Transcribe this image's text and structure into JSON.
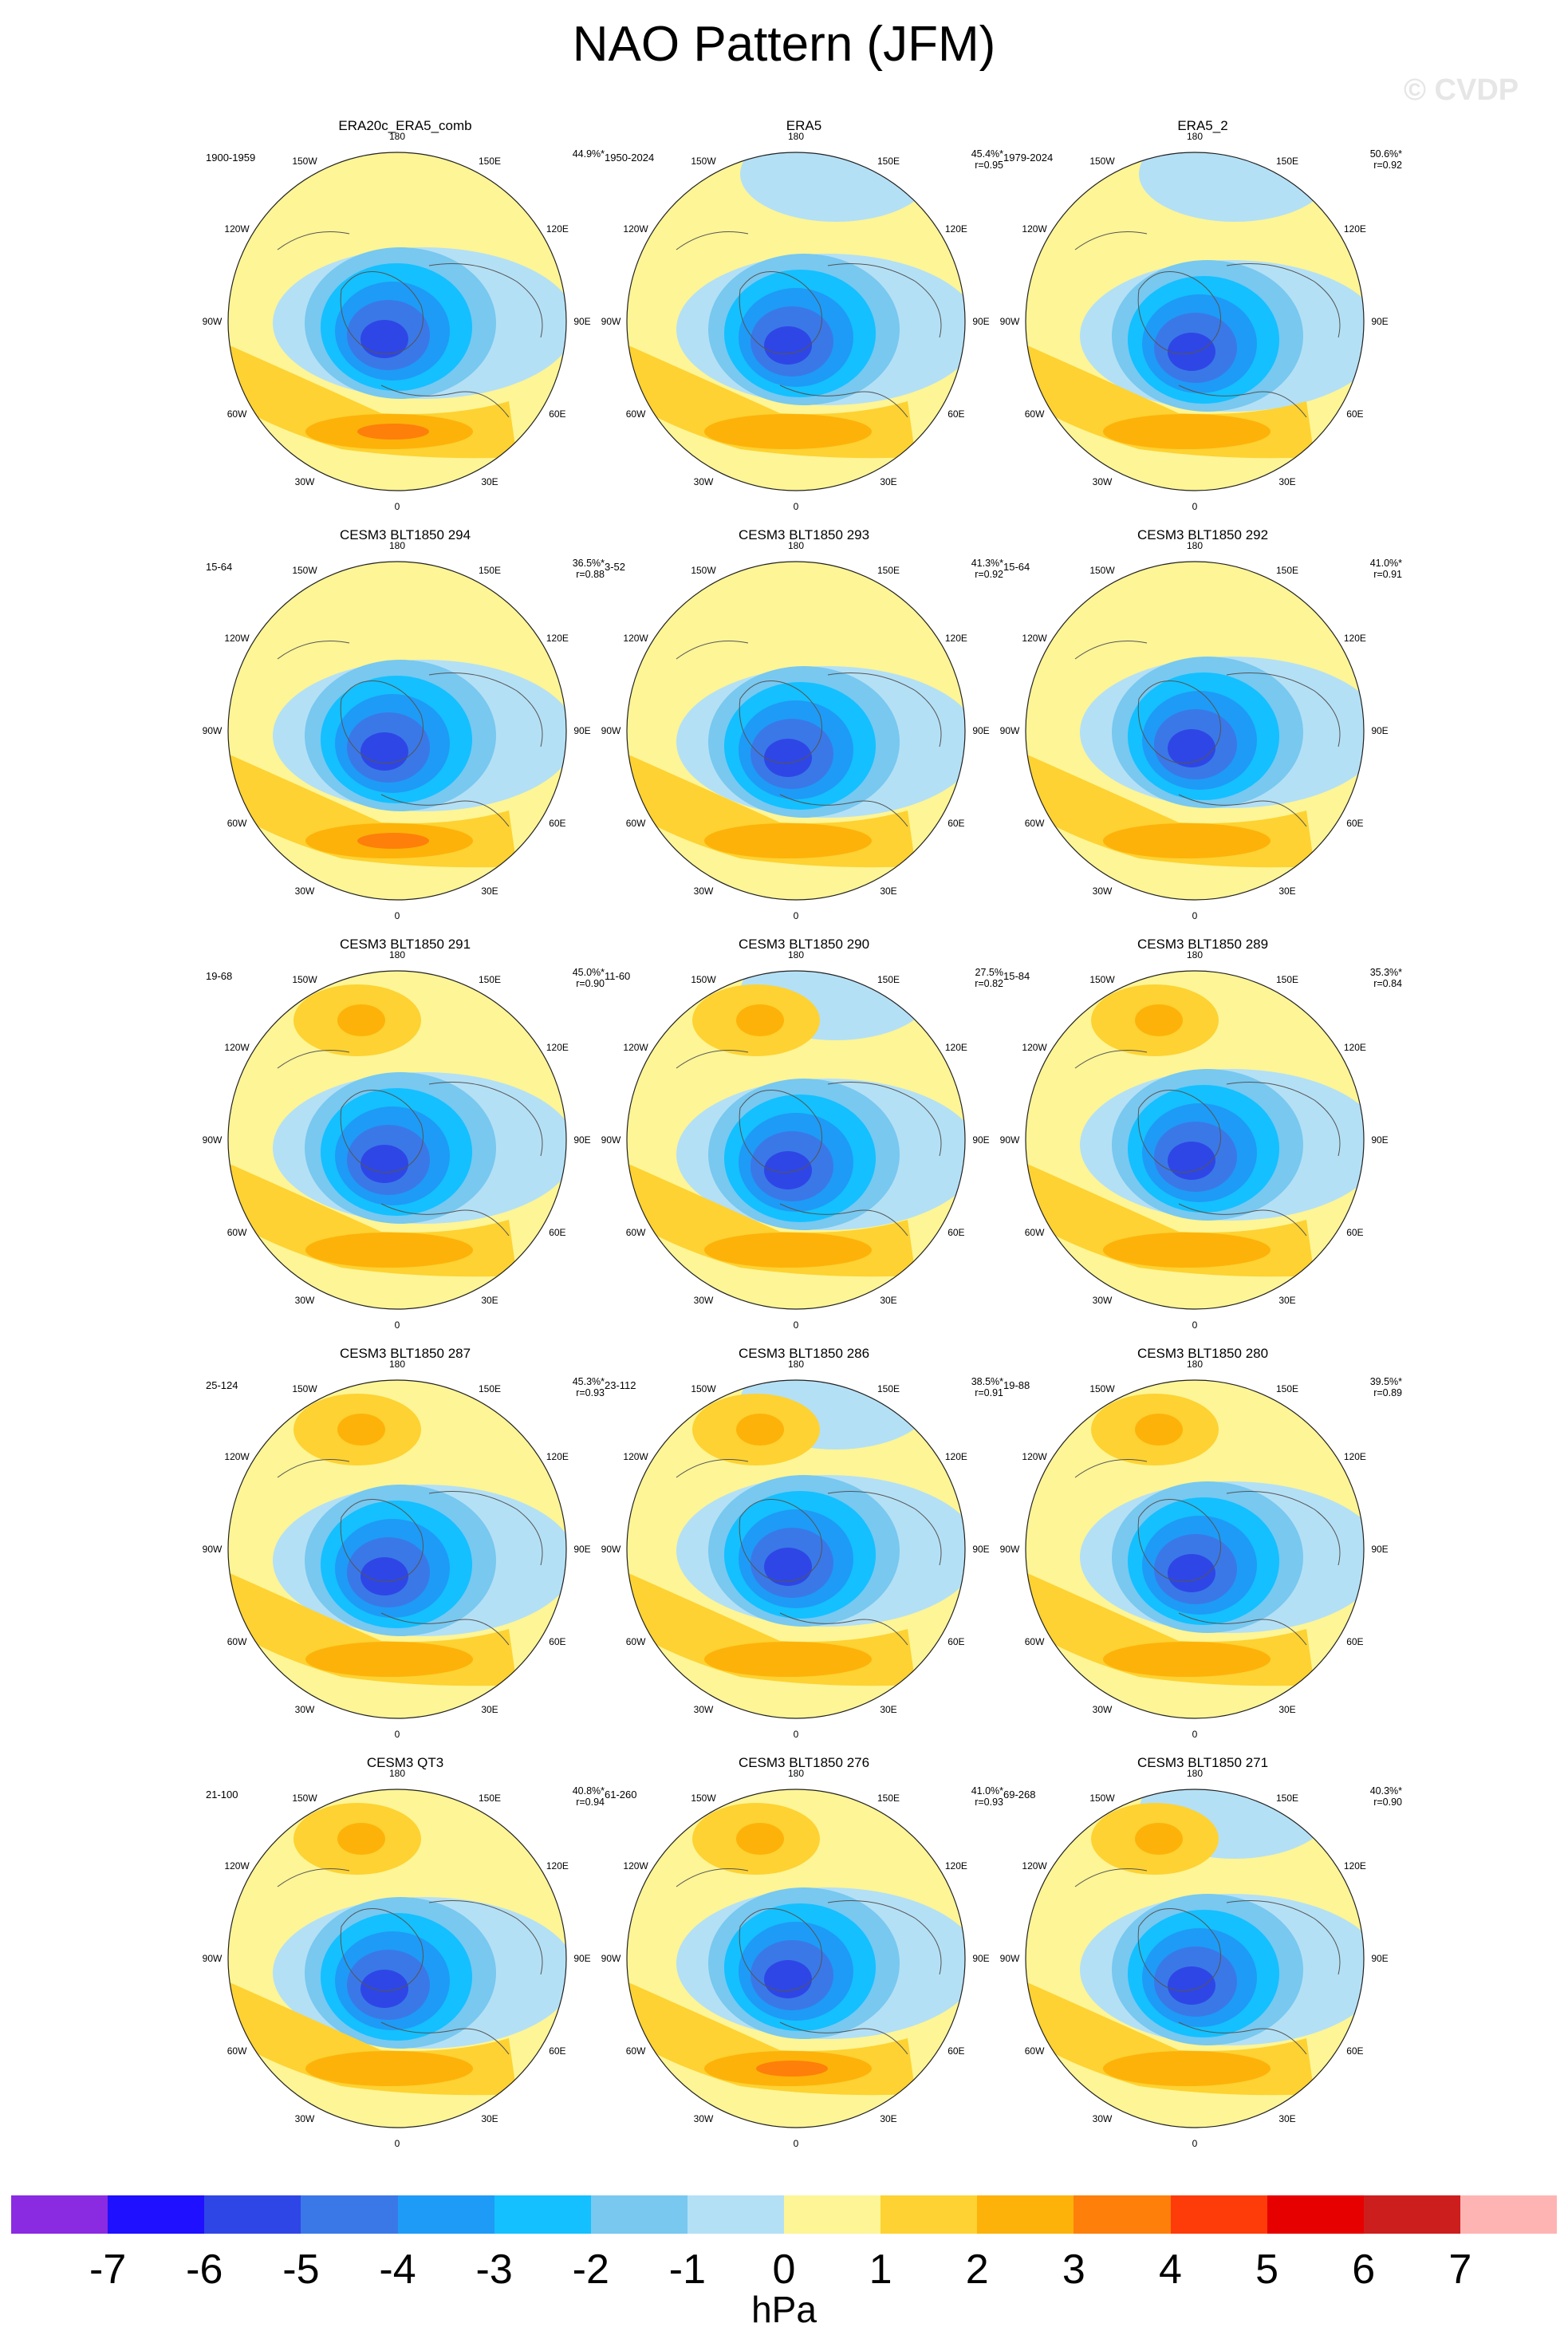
{
  "title": "NAO Pattern (JFM)",
  "watermark": "© CVDP",
  "map_labels": [
    "180",
    "150E",
    "120E",
    "90E",
    "60E",
    "30E",
    "0",
    "30W",
    "60W",
    "90W",
    "120W",
    "150W"
  ],
  "panels": [
    {
      "title": "ERA20c_ERA5_comb",
      "period": "1900-1959",
      "pct": "44.9%*",
      "r": ""
    },
    {
      "title": "ERA5",
      "period": "1950-2024",
      "pct": "45.4%*",
      "r": "r=0.95"
    },
    {
      "title": "ERA5_2",
      "period": "1979-2024",
      "pct": "50.6%*",
      "r": "r=0.92"
    },
    {
      "title": "CESM3 BLT1850 294",
      "period": "15-64",
      "pct": "36.5%*",
      "r": "r=0.88"
    },
    {
      "title": "CESM3 BLT1850 293",
      "period": "3-52",
      "pct": "41.3%*",
      "r": "r=0.92"
    },
    {
      "title": "CESM3 BLT1850 292",
      "period": "15-64",
      "pct": "41.0%*",
      "r": "r=0.91"
    },
    {
      "title": "CESM3 BLT1850 291",
      "period": "19-68",
      "pct": "45.0%*",
      "r": "r=0.90"
    },
    {
      "title": "CESM3 BLT1850 290",
      "period": "11-60",
      "pct": "27.5%",
      "r": "r=0.82"
    },
    {
      "title": "CESM3 BLT1850 289",
      "period": "15-84",
      "pct": "35.3%*",
      "r": "r=0.84"
    },
    {
      "title": "CESM3 BLT1850 287",
      "period": "25-124",
      "pct": "45.3%*",
      "r": "r=0.93"
    },
    {
      "title": "CESM3 BLT1850 286",
      "period": "23-112",
      "pct": "38.5%*",
      "r": "r=0.91"
    },
    {
      "title": "CESM3 BLT1850 280",
      "period": "19-88",
      "pct": "39.5%*",
      "r": "r=0.89"
    },
    {
      "title": "CESM3 QT3",
      "period": "21-100",
      "pct": "40.8%*",
      "r": "r=0.94"
    },
    {
      "title": "CESM3 BLT1850 276",
      "period": "61-260",
      "pct": "41.0%*",
      "r": "r=0.93"
    },
    {
      "title": "CESM3 BLT1850 271",
      "period": "69-268",
      "pct": "40.3%*",
      "r": "r=0.90"
    }
  ],
  "colorbar": {
    "colors": [
      "#8a2be2",
      "#1f10ff",
      "#2f46e6",
      "#3a78e8",
      "#1e9bf6",
      "#14c0ff",
      "#78c8f0",
      "#b4e0f5",
      "#fdf596",
      "#fdd232",
      "#fdb20a",
      "#fe7f0a",
      "#fe3c0a",
      "#e60000",
      "#cd1e1e",
      "#ffb4b4"
    ],
    "ticks": [
      "-7",
      "-6",
      "-5",
      "-4",
      "-3",
      "-2",
      "-1",
      "0",
      "1",
      "2",
      "3",
      "4",
      "5",
      "6",
      "7"
    ],
    "unit": "hPa"
  }
}
